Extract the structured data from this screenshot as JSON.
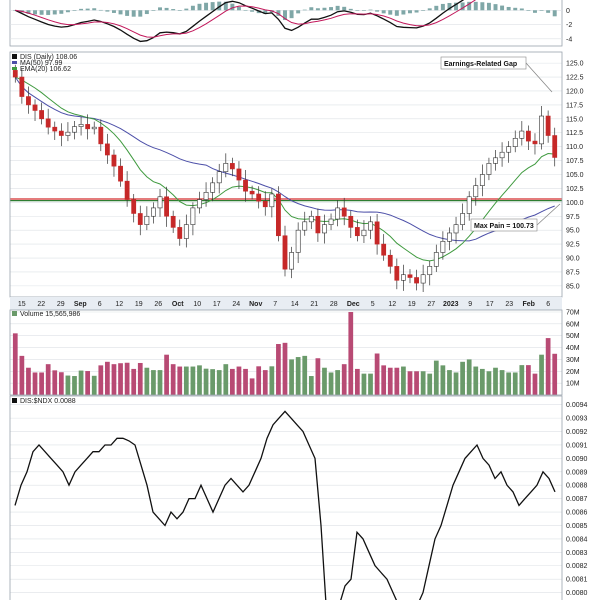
{
  "chart_data": {
    "type": "stock-chart",
    "x_tick_labels": [
      "15",
      "22",
      "29",
      "Sep",
      "6",
      "12",
      "19",
      "26",
      "Oct",
      "10",
      "17",
      "24",
      "Nov",
      "7",
      "14",
      "21",
      "28",
      "Dec",
      "5",
      "12",
      "19",
      "27",
      "2023",
      "9",
      "17",
      "23",
      "Feb",
      "6"
    ],
    "macd": {
      "y_ticks": [
        "0",
        "-2",
        "-4"
      ],
      "ylim": [
        -5,
        2
      ]
    },
    "price": {
      "legend": {
        "symbol": "DIS (Daily) 108.06",
        "ma": "MA(50) 97.99",
        "ema": "EMA(20) 106.62"
      },
      "y_ticks": [
        "125.0",
        "122.5",
        "120.0",
        "117.5",
        "115.0",
        "112.5",
        "110.0",
        "107.5",
        "105.0",
        "102.5",
        "100.0",
        "97.5",
        "95.0",
        "92.5",
        "90.0",
        "87.5",
        "85.0"
      ],
      "ylim": [
        83,
        127
      ],
      "red_line": 100.6,
      "green_line": 100.6,
      "annotations": [
        {
          "text": "Earnings-Related Gap"
        },
        {
          "text": "Max Pain = 100.73"
        }
      ],
      "close": [
        122.5,
        119,
        117.5,
        116.5,
        115,
        113.5,
        112.8,
        112,
        112.6,
        113.6,
        114,
        113.2,
        113.5,
        110.5,
        108.5,
        106.5,
        103.8,
        100.5,
        98,
        96,
        97.5,
        99,
        101,
        97.5,
        95.5,
        93.5,
        96,
        99,
        100.5,
        101.8,
        103.5,
        105.5,
        107,
        106,
        104,
        102,
        101.5,
        100.2,
        99.2,
        101.5,
        94,
        88,
        91,
        95,
        96.5,
        97.5,
        94.5,
        96,
        97,
        99,
        97.5,
        95.5,
        94,
        95,
        96.5,
        92.5,
        90.5,
        88.5,
        86,
        87,
        86.5,
        85.5,
        87,
        88.5,
        91,
        93,
        94.5,
        96,
        98,
        101,
        103,
        105,
        107,
        108,
        109,
        110,
        111.5,
        112.8,
        111,
        110.5,
        115.5,
        112,
        108.06
      ]
    },
    "volume": {
      "legend": "Volume 15,565,986",
      "y_ticks": [
        "70M",
        "60M",
        "50M",
        "40M",
        "30M",
        "20M",
        "10M"
      ],
      "ylim": [
        0,
        70
      ]
    },
    "ratio": {
      "legend": "DIS:$NDX 0.0088",
      "y_ticks": [
        "0.0094",
        "0.0093",
        "0.0092",
        "0.0091",
        "0.0090",
        "0.0089",
        "0.0088",
        "0.0087",
        "0.0086",
        "0.0085",
        "0.0084",
        "0.0083",
        "0.0082",
        "0.0081",
        "0.0080"
      ],
      "ylim": [
        0.0079,
        0.00945
      ],
      "values": [
        0.00865,
        0.0088,
        0.0089,
        0.00905,
        0.0091,
        0.00905,
        0.009,
        0.00895,
        0.0089,
        0.0088,
        0.0089,
        0.00895,
        0.009,
        0.00905,
        0.00905,
        0.0091,
        0.0091,
        0.00915,
        0.00915,
        0.00913,
        0.0091,
        0.00895,
        0.0088,
        0.0086,
        0.00855,
        0.0085,
        0.0086,
        0.00855,
        0.0086,
        0.0087,
        0.0087,
        0.0088,
        0.0087,
        0.0086,
        0.0087,
        0.0088,
        0.00885,
        0.0088,
        0.00875,
        0.0088,
        0.0089,
        0.009,
        0.00915,
        0.00925,
        0.0093,
        0.00935,
        0.0093,
        0.00925,
        0.0092,
        0.0091,
        0.009,
        0.0085,
        0.0078,
        0.0078,
        0.0079,
        0.00805,
        0.0081,
        0.00845,
        0.0084,
        0.0083,
        0.0082,
        0.00815,
        0.0081,
        0.008,
        0.0079,
        0.0078,
        0.0078,
        0.0079,
        0.008,
        0.0082,
        0.0084,
        0.0085,
        0.00865,
        0.0088,
        0.0089,
        0.009,
        0.00905,
        0.0091,
        0.009,
        0.00895,
        0.00885,
        0.0089,
        0.0088,
        0.00875,
        0.00865,
        0.0087,
        0.00875,
        0.0088,
        0.0089,
        0.00885,
        0.00875
      ]
    }
  }
}
